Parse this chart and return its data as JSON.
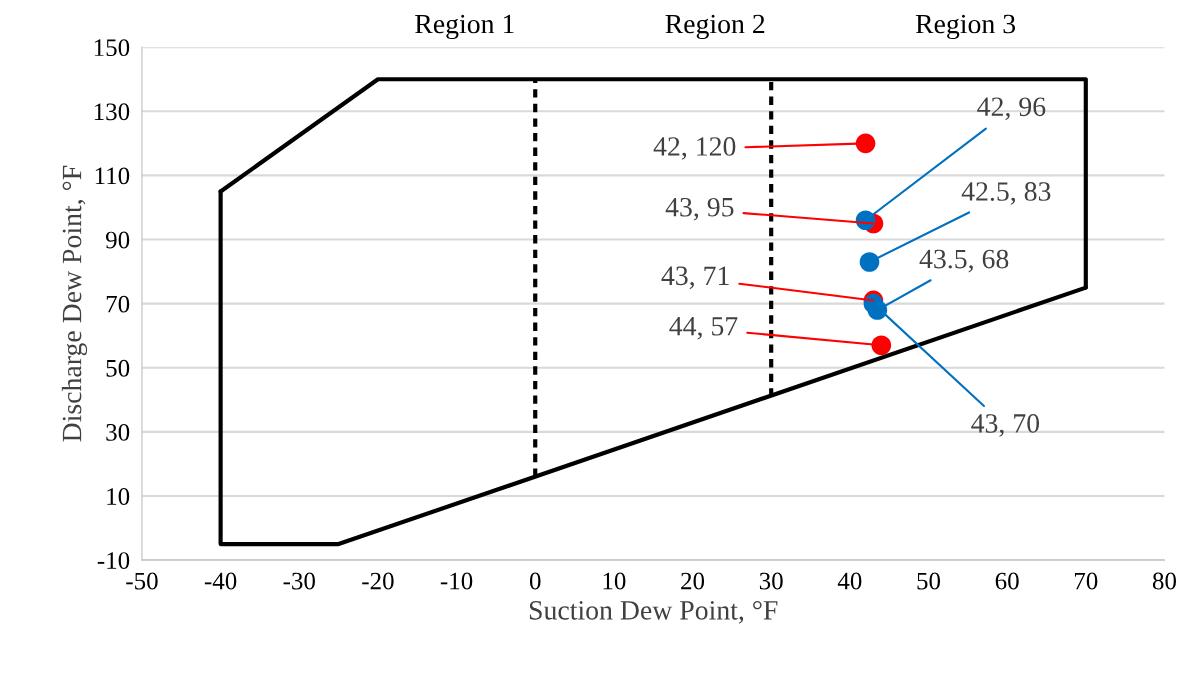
{
  "chart_data": {
    "type": "scatter",
    "xlabel": "Suction Dew Point, °F",
    "ylabel": "Discharge Dew Point, °F",
    "xlim": [
      -50,
      80
    ],
    "ylim": [
      -10,
      150
    ],
    "xticks": [
      -50,
      -40,
      -30,
      -20,
      -10,
      0,
      10,
      20,
      30,
      40,
      50,
      60,
      70,
      80
    ],
    "yticks": [
      -10,
      10,
      30,
      50,
      70,
      90,
      110,
      130,
      150
    ],
    "grid": "y",
    "series": [
      {
        "type": "line",
        "color": "#000000",
        "line_style": "solid",
        "marker": "none",
        "x": [
          -40,
          -20,
          70,
          70
        ],
        "values": [
          105,
          140,
          140,
          75
        ]
      },
      {
        "type": "line",
        "color": "#000000",
        "line_style": "solid",
        "marker": "none",
        "x": [
          -40,
          -40,
          -25,
          70
        ],
        "values": [
          105,
          -5,
          -5,
          75
        ]
      },
      {
        "type": "line",
        "color": "#000000",
        "line_style": "dashed",
        "marker": "none",
        "x": [
          0,
          0
        ],
        "values": [
          16,
          140
        ]
      },
      {
        "type": "line",
        "color": "#000000",
        "line_style": "dashed",
        "marker": "none",
        "x": [
          30,
          30
        ],
        "values": [
          41,
          140
        ]
      },
      {
        "color": "#ff0000",
        "marker": "circle",
        "x": [
          42,
          43,
          43,
          44
        ],
        "values": [
          120,
          95,
          71,
          57
        ],
        "value_labels": [
          "42, 120",
          "43, 95",
          "43, 71",
          "44, 57"
        ]
      },
      {
        "color": "#0070c0",
        "marker": "circle",
        "x": [
          42,
          42.5,
          43.5,
          43
        ],
        "values": [
          96,
          83,
          68,
          70
        ],
        "value_labels": [
          "42, 96",
          "42.5, 83",
          "43.5, 68",
          "43, 70"
        ]
      }
    ],
    "annotations": [
      "Region 1",
      "Region 2",
      "Region 3"
    ]
  }
}
